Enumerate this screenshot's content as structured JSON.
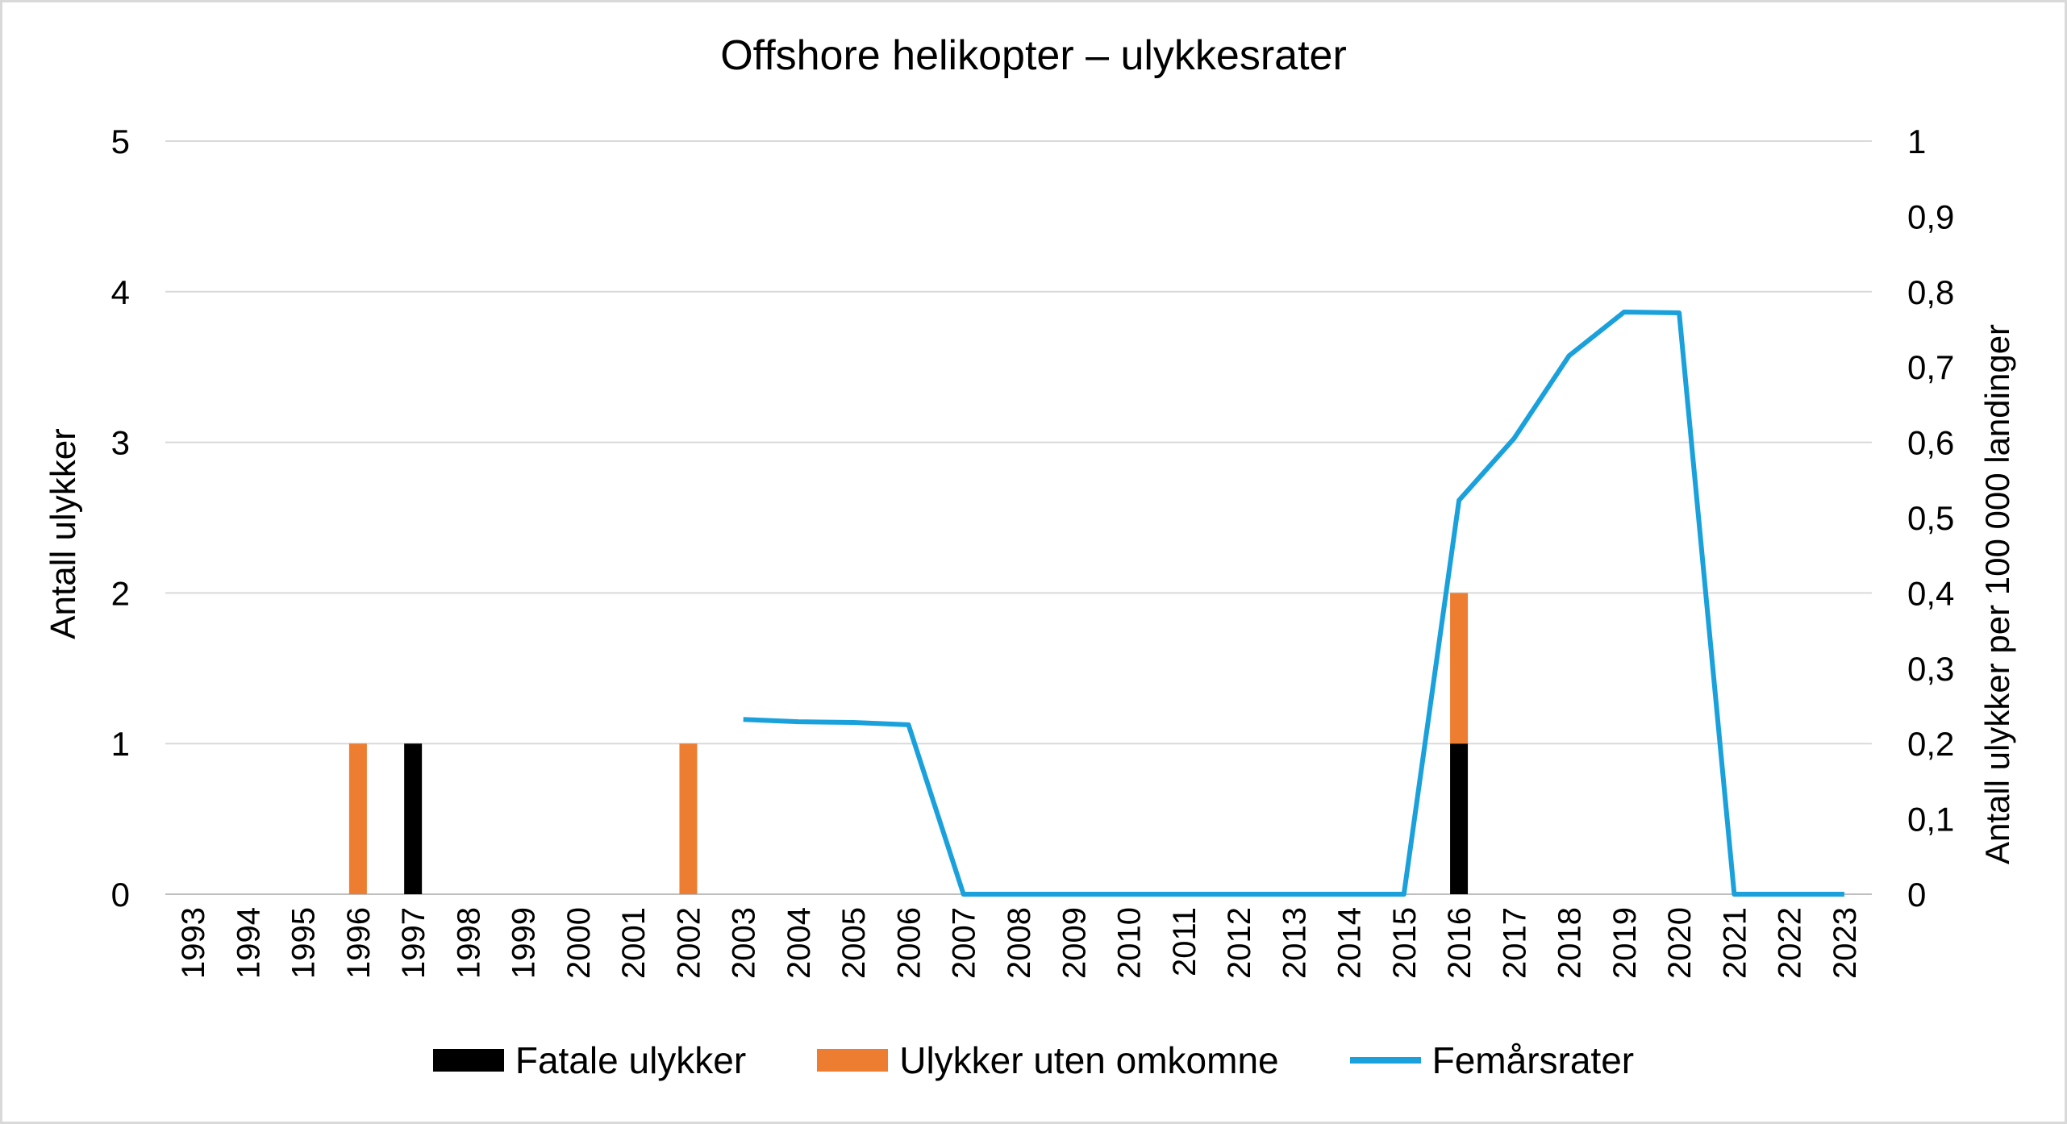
{
  "chart_data": {
    "type": "bar",
    "title": "Offshore helikopter – ulykkesrater",
    "categories": [
      "1993",
      "1994",
      "1995",
      "1996",
      "1997",
      "1998",
      "1999",
      "2000",
      "2001",
      "2002",
      "2003",
      "2004",
      "2005",
      "2006",
      "2007",
      "2008",
      "2009",
      "2010",
      "2011",
      "2012",
      "2013",
      "2014",
      "2015",
      "2016",
      "2017",
      "2018",
      "2019",
      "2020",
      "2021",
      "2022",
      "2023"
    ],
    "ylabel": "Antall ulykker",
    "ylim": [
      0,
      5
    ],
    "yticks": [
      "0",
      "1",
      "2",
      "3",
      "4",
      "5"
    ],
    "y2label": "Antall ulykker per 100 000 landinger",
    "y2lim": [
      0,
      1
    ],
    "y2ticks": [
      "0",
      "0,1",
      "0,2",
      "0,3",
      "0,4",
      "0,5",
      "0,6",
      "0,7",
      "0,8",
      "0,9",
      "1"
    ],
    "grid": true,
    "legend_position": "bottom",
    "stacked": true,
    "series": [
      {
        "name": "Fatale ulykker",
        "type": "bar",
        "axis": "left",
        "color": "#000000",
        "values": [
          0,
          0,
          0,
          0,
          1,
          0,
          0,
          0,
          0,
          0,
          0,
          0,
          0,
          0,
          0,
          0,
          0,
          0,
          0,
          0,
          0,
          0,
          0,
          1,
          0,
          0,
          0,
          0,
          0,
          0,
          0
        ]
      },
      {
        "name": "Ulykker uten omkomne",
        "type": "bar",
        "axis": "left",
        "color": "#ed7d31",
        "values": [
          0,
          0,
          0,
          1,
          0,
          0,
          0,
          0,
          0,
          1,
          0,
          0,
          0,
          0,
          0,
          0,
          0,
          0,
          0,
          0,
          0,
          0,
          0,
          1,
          0,
          0,
          0,
          0,
          0,
          0,
          0
        ]
      },
      {
        "name": "Femårsrater",
        "type": "line",
        "axis": "right",
        "color": "#1aa1dc",
        "values": [
          null,
          null,
          null,
          null,
          null,
          null,
          null,
          null,
          null,
          null,
          0.232,
          0.229,
          0.228,
          0.225,
          0,
          0,
          0,
          0,
          0,
          0,
          0,
          0,
          0,
          0.523,
          0.605,
          0.715,
          0.773,
          0.772,
          0,
          0,
          0
        ]
      }
    ]
  }
}
